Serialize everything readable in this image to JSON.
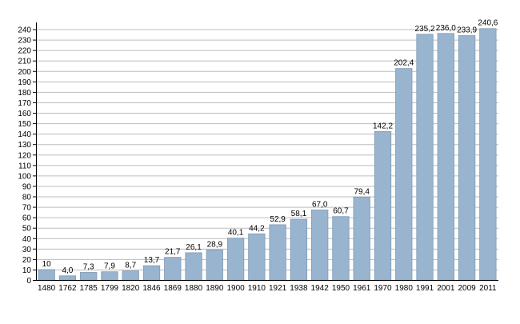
{
  "chart_data": {
    "type": "bar",
    "title": "",
    "xlabel": "",
    "ylabel": "",
    "ylim": [
      0,
      245
    ],
    "grid": true,
    "yticks": [
      0,
      10,
      20,
      30,
      40,
      50,
      60,
      70,
      80,
      90,
      100,
      110,
      120,
      130,
      140,
      150,
      160,
      170,
      180,
      190,
      200,
      210,
      220,
      230,
      240
    ],
    "categories": [
      "1480",
      "1762",
      "1785",
      "1799",
      "1820",
      "1846",
      "1869",
      "1880",
      "1890",
      "1900",
      "1910",
      "1921",
      "1938",
      "1942",
      "1950",
      "1961",
      "1970",
      "1980",
      "1991",
      "2001",
      "2009",
      "2011"
    ],
    "values": [
      10,
      4.0,
      7.3,
      7.9,
      8.7,
      13.7,
      21.7,
      26.1,
      28.9,
      40.1,
      44.2,
      52.9,
      58.1,
      67.0,
      60.7,
      79.4,
      142.2,
      202.4,
      235.2,
      236.0,
      233.9,
      240.6
    ],
    "value_labels": [
      "10",
      "4,0",
      "7,3",
      "7,9",
      "8,7",
      "13,7",
      "21,7",
      "26,1",
      "28,9",
      "40,1",
      "44,2",
      "52,9",
      "58,1",
      "67,0",
      "60,7",
      "79,4",
      "142,2",
      "202,4",
      "235,2",
      "236,0",
      "233,9",
      "240,6"
    ],
    "colors": {
      "bar_fill": "#98b4cf",
      "bar_stroke": "#7f9bb7",
      "grid": "#bdbdbd",
      "axis": "#000000"
    }
  }
}
